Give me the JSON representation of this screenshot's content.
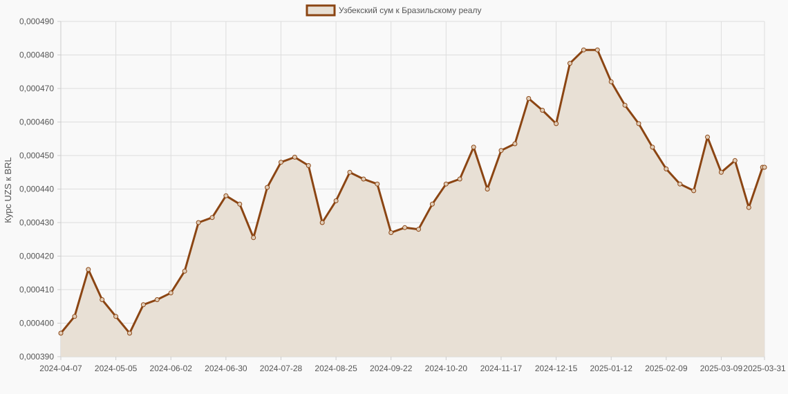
{
  "chart_data": {
    "type": "area",
    "legend": {
      "label": "Узбекский сум к Бразильскому реалу",
      "position": "top-center"
    },
    "ylabel": "Курс UZS к BRL",
    "xlabel": "",
    "title": "",
    "ylim": [
      0.00039,
      0.00049
    ],
    "y_ticks": [
      "0,000390",
      "0,000400",
      "0,000410",
      "0,000420",
      "0,000430",
      "0,000440",
      "0,000450",
      "0,000460",
      "0,000470",
      "0,000480",
      "0,000490"
    ],
    "x_ticks": [
      "2024-04-07",
      "2024-05-05",
      "2024-06-02",
      "2024-06-30",
      "2024-07-28",
      "2024-08-25",
      "2024-09-22",
      "2024-10-20",
      "2024-11-17",
      "2024-12-15",
      "2025-01-12",
      "2025-02-09",
      "2025-03-09",
      "2025-03-31"
    ],
    "grid": true,
    "colors": {
      "line": "#8b4513",
      "fill": "#e8e0d5",
      "grid": "#dddddd",
      "background": "#f9f9f9"
    },
    "series": [
      {
        "name": "Узбекский сум к Бразильскому реалу",
        "x": [
          "2024-04-07",
          "2024-04-14",
          "2024-04-21",
          "2024-04-28",
          "2024-05-05",
          "2024-05-12",
          "2024-05-19",
          "2024-05-26",
          "2024-06-02",
          "2024-06-09",
          "2024-06-16",
          "2024-06-23",
          "2024-06-30",
          "2024-07-07",
          "2024-07-14",
          "2024-07-21",
          "2024-07-28",
          "2024-08-04",
          "2024-08-11",
          "2024-08-18",
          "2024-08-25",
          "2024-09-01",
          "2024-09-08",
          "2024-09-15",
          "2024-09-22",
          "2024-09-29",
          "2024-10-06",
          "2024-10-13",
          "2024-10-20",
          "2024-10-27",
          "2024-11-03",
          "2024-11-10",
          "2024-11-17",
          "2024-11-24",
          "2024-12-01",
          "2024-12-08",
          "2024-12-15",
          "2024-12-22",
          "2024-12-29",
          "2025-01-05",
          "2025-01-12",
          "2025-01-19",
          "2025-01-26",
          "2025-02-02",
          "2025-02-09",
          "2025-02-16",
          "2025-02-23",
          "2025-03-02",
          "2025-03-09",
          "2025-03-16",
          "2025-03-23",
          "2025-03-30",
          "2025-03-31"
        ],
        "values": [
          0.000397,
          0.000402,
          0.000416,
          0.000407,
          0.000402,
          0.000397,
          0.0004055,
          0.000407,
          0.000409,
          0.0004155,
          0.00043,
          0.0004315,
          0.000438,
          0.0004355,
          0.0004255,
          0.0004405,
          0.000448,
          0.0004495,
          0.000447,
          0.00043,
          0.0004365,
          0.000445,
          0.000443,
          0.0004415,
          0.000427,
          0.0004285,
          0.000428,
          0.0004355,
          0.0004415,
          0.000443,
          0.0004525,
          0.00044,
          0.0004515,
          0.0004535,
          0.000467,
          0.0004635,
          0.0004595,
          0.0004775,
          0.0004815,
          0.0004815,
          0.000472,
          0.000465,
          0.0004595,
          0.0004525,
          0.000446,
          0.0004415,
          0.0004395,
          0.0004555,
          0.000445,
          0.0004485,
          0.0004345,
          0.0004465,
          0.0004465
        ]
      }
    ]
  }
}
